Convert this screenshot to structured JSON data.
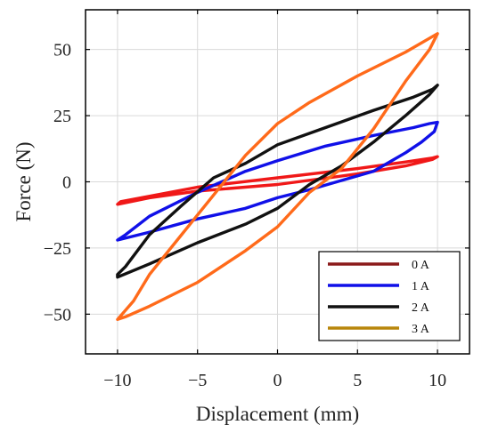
{
  "chart_data": {
    "type": "line",
    "xlabel": "Displacement (mm)",
    "ylabel": "Force (N)",
    "xlim": [
      -12,
      12
    ],
    "ylim": [
      -65,
      65
    ],
    "xticks": [
      -10,
      -5,
      0,
      5,
      10
    ],
    "xtick_labels": [
      "−10",
      "−5",
      "0",
      "5",
      "10"
    ],
    "yticks": [
      -50,
      -25,
      0,
      25,
      50
    ],
    "yticks_labels": [
      "−50",
      "−25",
      "0",
      "25",
      "50"
    ],
    "grid": true,
    "legend_position": "bottom-right",
    "legend": [
      "0 A",
      "1 A",
      "2 A",
      "3 A"
    ],
    "legend_colors": [
      "#8B1A1A",
      "#1010E8",
      "#111111",
      "#B8860B"
    ],
    "series_colors": [
      "#F01818",
      "#1010E8",
      "#111111",
      "#FF6A1A"
    ],
    "series": [
      {
        "x": [
          -10,
          -9.8,
          -5,
          0,
          5,
          8,
          9.7,
          10,
          9.7,
          8,
          5,
          0,
          -5,
          -8,
          -10
        ],
        "y": [
          -8.5,
          -7.5,
          -2,
          1.5,
          5,
          7.5,
          9,
          9.5,
          8.5,
          6,
          3,
          -1,
          -3.5,
          -6,
          -8.5
        ]
      },
      {
        "x": [
          -10,
          -9.5,
          -8,
          -5,
          -2,
          0,
          3,
          6,
          8.5,
          9.5,
          10,
          9.8,
          9,
          8,
          6,
          4,
          2,
          0,
          -2,
          -5,
          -8,
          -10
        ],
        "y": [
          -22,
          -20,
          -13,
          -4,
          4,
          8,
          13.5,
          17.5,
          20.5,
          22,
          22.5,
          19,
          15,
          11,
          4,
          0.5,
          -3,
          -6,
          -10,
          -14,
          -19,
          -22
        ]
      },
      {
        "x": [
          -10,
          -9.5,
          -8,
          -6,
          -4,
          -2,
          0,
          3,
          6,
          8.5,
          9.7,
          10,
          9.5,
          8,
          6,
          4,
          2,
          0,
          -2,
          -5,
          -8,
          -10
        ],
        "y": [
          -35,
          -32,
          -20,
          -9,
          1.5,
          7,
          14,
          20.5,
          27,
          32,
          35,
          36.5,
          33,
          25,
          15,
          6,
          -1,
          -10,
          -16,
          -23,
          -31,
          -36
        ]
      },
      {
        "x": [
          -10,
          -9,
          -8,
          -6,
          -4,
          -2,
          0,
          2,
          5,
          8,
          10,
          9.5,
          8,
          6,
          4,
          2,
          0,
          -2,
          -5,
          -8,
          -9.5,
          -10
        ],
        "y": [
          -52,
          -45,
          -35,
          -20,
          -5,
          10,
          22,
          30,
          40,
          49,
          56,
          50,
          38,
          20,
          5,
          -4,
          -17,
          -26,
          -38,
          -47,
          -51,
          -52
        ]
      }
    ]
  }
}
